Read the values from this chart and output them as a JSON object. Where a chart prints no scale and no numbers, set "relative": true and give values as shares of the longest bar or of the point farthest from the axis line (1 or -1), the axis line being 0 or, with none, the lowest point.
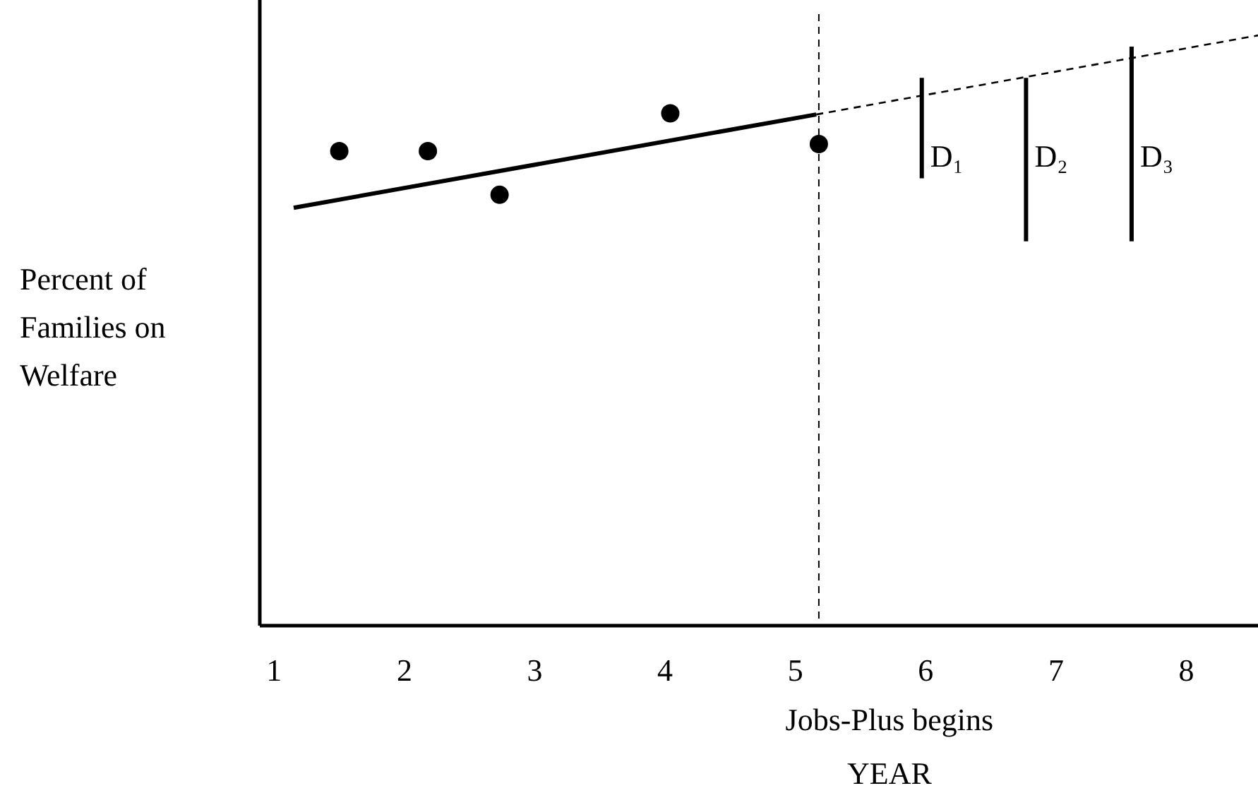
{
  "chart_data": {
    "type": "scatter",
    "relative": true,
    "xlabel": "YEAR",
    "ylabel": "Percent of Families on Welfare",
    "xlim": [
      0.89,
      8.55
    ],
    "xticks": [
      1,
      2,
      3,
      4,
      5,
      6,
      7,
      8
    ],
    "series": [
      {
        "color": "#000000",
        "marker": "circle",
        "x": [
          1.5,
          2.18,
          2.73,
          4.04,
          5.18
        ],
        "values": [
          0.804,
          0.804,
          0.73,
          0.868,
          0.816
        ]
      },
      {
        "type": "line",
        "color": "#000000",
        "line_style": "solid",
        "x": [
          1.15,
          5.16
        ],
        "values": [
          0.708,
          0.866
        ]
      },
      {
        "type": "line",
        "color": "#000000",
        "line_style": "dashed",
        "x": [
          5.16,
          8.55
        ],
        "values": [
          0.866,
          1.0
        ]
      },
      {
        "type": "line",
        "name": "D₁",
        "color": "#000000",
        "line_style": "solid",
        "x": [
          5.97,
          5.97
        ],
        "values": [
          0.928,
          0.758
        ]
      },
      {
        "type": "line",
        "name": "D₂",
        "color": "#000000",
        "line_style": "solid",
        "x": [
          6.77,
          6.77
        ],
        "values": [
          0.928,
          0.651
        ]
      },
      {
        "type": "line",
        "name": "D₃",
        "color": "#000000",
        "line_style": "solid",
        "x": [
          7.58,
          7.58
        ],
        "values": [
          0.981,
          0.651
        ]
      }
    ],
    "ref_lines": [
      {
        "axis": "x",
        "value": 5.18,
        "label": "Jobs-Plus begins",
        "line_style": "dashed",
        "color": "#000000"
      }
    ]
  }
}
